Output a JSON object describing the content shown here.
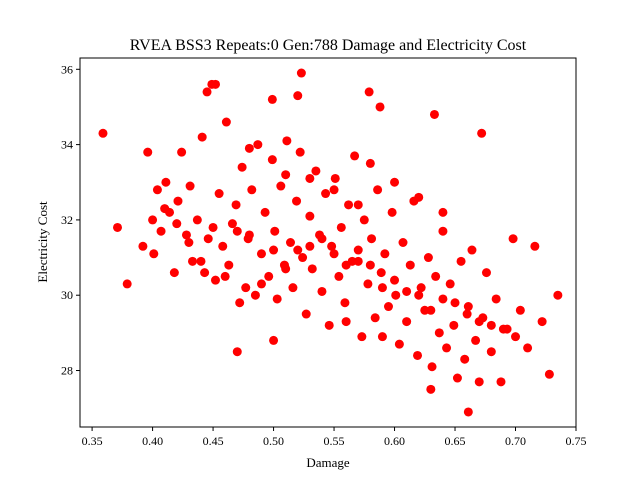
{
  "chart_data": {
    "type": "scatter",
    "title": "RVEA BSS3 Repeats:0 Gen:788 Damage and Electricity Cost",
    "xlabel": "Damage",
    "ylabel": "Electricity Cost",
    "xlim": [
      0.34,
      0.75
    ],
    "ylim": [
      26.5,
      36.3
    ],
    "xticks": [
      "0.35",
      "0.40",
      "0.45",
      "0.50",
      "0.55",
      "0.60",
      "0.65",
      "0.70",
      "0.75"
    ],
    "yticks": [
      "28",
      "30",
      "32",
      "34",
      "36"
    ],
    "grid": false,
    "legend": "none",
    "marker_color": "#ff0000",
    "series": [
      {
        "x": [
          0.359,
          0.371,
          0.379,
          0.392,
          0.396,
          0.401,
          0.404,
          0.407,
          0.411,
          0.414,
          0.418,
          0.421,
          0.424,
          0.428,
          0.431,
          0.433,
          0.437,
          0.441,
          0.443,
          0.446,
          0.449,
          0.452,
          0.455,
          0.458,
          0.461,
          0.463,
          0.466,
          0.469,
          0.472,
          0.474,
          0.477,
          0.479,
          0.482,
          0.485,
          0.487,
          0.49,
          0.493,
          0.496,
          0.499,
          0.501,
          0.503,
          0.506,
          0.509,
          0.511,
          0.514,
          0.516,
          0.519,
          0.522,
          0.524,
          0.527,
          0.53,
          0.532,
          0.535,
          0.538,
          0.54,
          0.543,
          0.546,
          0.548,
          0.551,
          0.554,
          0.556,
          0.559,
          0.562,
          0.565,
          0.567,
          0.57,
          0.573,
          0.575,
          0.578,
          0.581,
          0.584,
          0.586,
          0.589,
          0.592,
          0.595,
          0.598,
          0.601,
          0.604,
          0.607,
          0.61,
          0.613,
          0.616,
          0.619,
          0.622,
          0.625,
          0.628,
          0.631,
          0.634,
          0.637,
          0.64,
          0.643,
          0.646,
          0.649,
          0.652,
          0.655,
          0.658,
          0.661,
          0.664,
          0.667,
          0.67,
          0.673,
          0.676,
          0.68,
          0.684,
          0.688,
          0.693,
          0.698,
          0.704,
          0.71,
          0.716,
          0.722,
          0.728,
          0.735,
          0.445,
          0.452,
          0.499,
          0.52,
          0.523,
          0.579,
          0.588,
          0.633,
          0.672,
          0.661,
          0.51,
          0.55,
          0.58,
          0.62,
          0.48,
          0.53,
          0.57,
          0.6,
          0.64,
          0.47,
          0.5,
          0.56,
          0.59,
          0.63,
          0.42,
          0.44,
          0.46,
          0.49,
          0.52,
          0.54,
          0.58,
          0.61,
          0.65,
          0.43,
          0.51,
          0.55,
          0.62,
          0.66,
          0.68,
          0.41,
          0.45,
          0.48,
          0.53,
          0.57,
          0.6,
          0.64,
          0.69,
          0.4,
          0.47,
          0.5,
          0.56,
          0.59,
          0.63,
          0.67,
          0.7
        ],
        "y": [
          34.3,
          31.8,
          30.3,
          31.3,
          33.8,
          31.1,
          32.8,
          31.7,
          33.0,
          32.2,
          30.6,
          32.5,
          33.8,
          31.6,
          32.9,
          30.9,
          32.0,
          34.2,
          30.6,
          31.5,
          35.6,
          30.4,
          32.7,
          31.3,
          34.6,
          30.8,
          31.9,
          32.4,
          29.8,
          33.4,
          30.2,
          31.5,
          32.8,
          30.0,
          34.0,
          31.1,
          32.2,
          30.5,
          33.6,
          31.7,
          29.9,
          32.9,
          30.8,
          34.1,
          31.4,
          30.2,
          32.5,
          33.8,
          31.0,
          29.5,
          32.1,
          30.7,
          33.3,
          31.6,
          30.1,
          32.7,
          29.2,
          31.3,
          33.1,
          30.5,
          31.8,
          29.8,
          32.4,
          30.9,
          33.7,
          31.2,
          28.9,
          32.0,
          30.3,
          31.5,
          29.4,
          32.8,
          30.6,
          31.1,
          29.7,
          32.2,
          30.0,
          28.7,
          31.4,
          29.3,
          30.8,
          32.5,
          28.4,
          30.2,
          29.6,
          31.0,
          28.1,
          30.5,
          29.0,
          31.7,
          28.6,
          30.3,
          29.2,
          27.8,
          30.9,
          28.3,
          29.7,
          31.2,
          28.8,
          27.7,
          29.4,
          30.6,
          28.5,
          29.9,
          27.7,
          29.1,
          31.5,
          29.6,
          28.6,
          31.3,
          29.3,
          27.9,
          30.0,
          35.4,
          35.6,
          35.2,
          35.3,
          35.9,
          35.4,
          35.0,
          34.8,
          34.3,
          26.9,
          33.2,
          32.8,
          33.5,
          32.6,
          33.9,
          33.1,
          32.4,
          33.0,
          32.2,
          28.5,
          28.8,
          29.3,
          28.9,
          27.5,
          31.9,
          30.9,
          30.5,
          30.3,
          31.2,
          31.5,
          30.8,
          30.1,
          29.8,
          31.4,
          30.7,
          31.1,
          30.0,
          29.5,
          29.2,
          32.3,
          31.8,
          31.6,
          31.3,
          30.9,
          30.4,
          29.9,
          29.1,
          32.0,
          31.7,
          31.2,
          30.8,
          30.2,
          29.6,
          29.3,
          28.9
        ]
      }
    ]
  }
}
